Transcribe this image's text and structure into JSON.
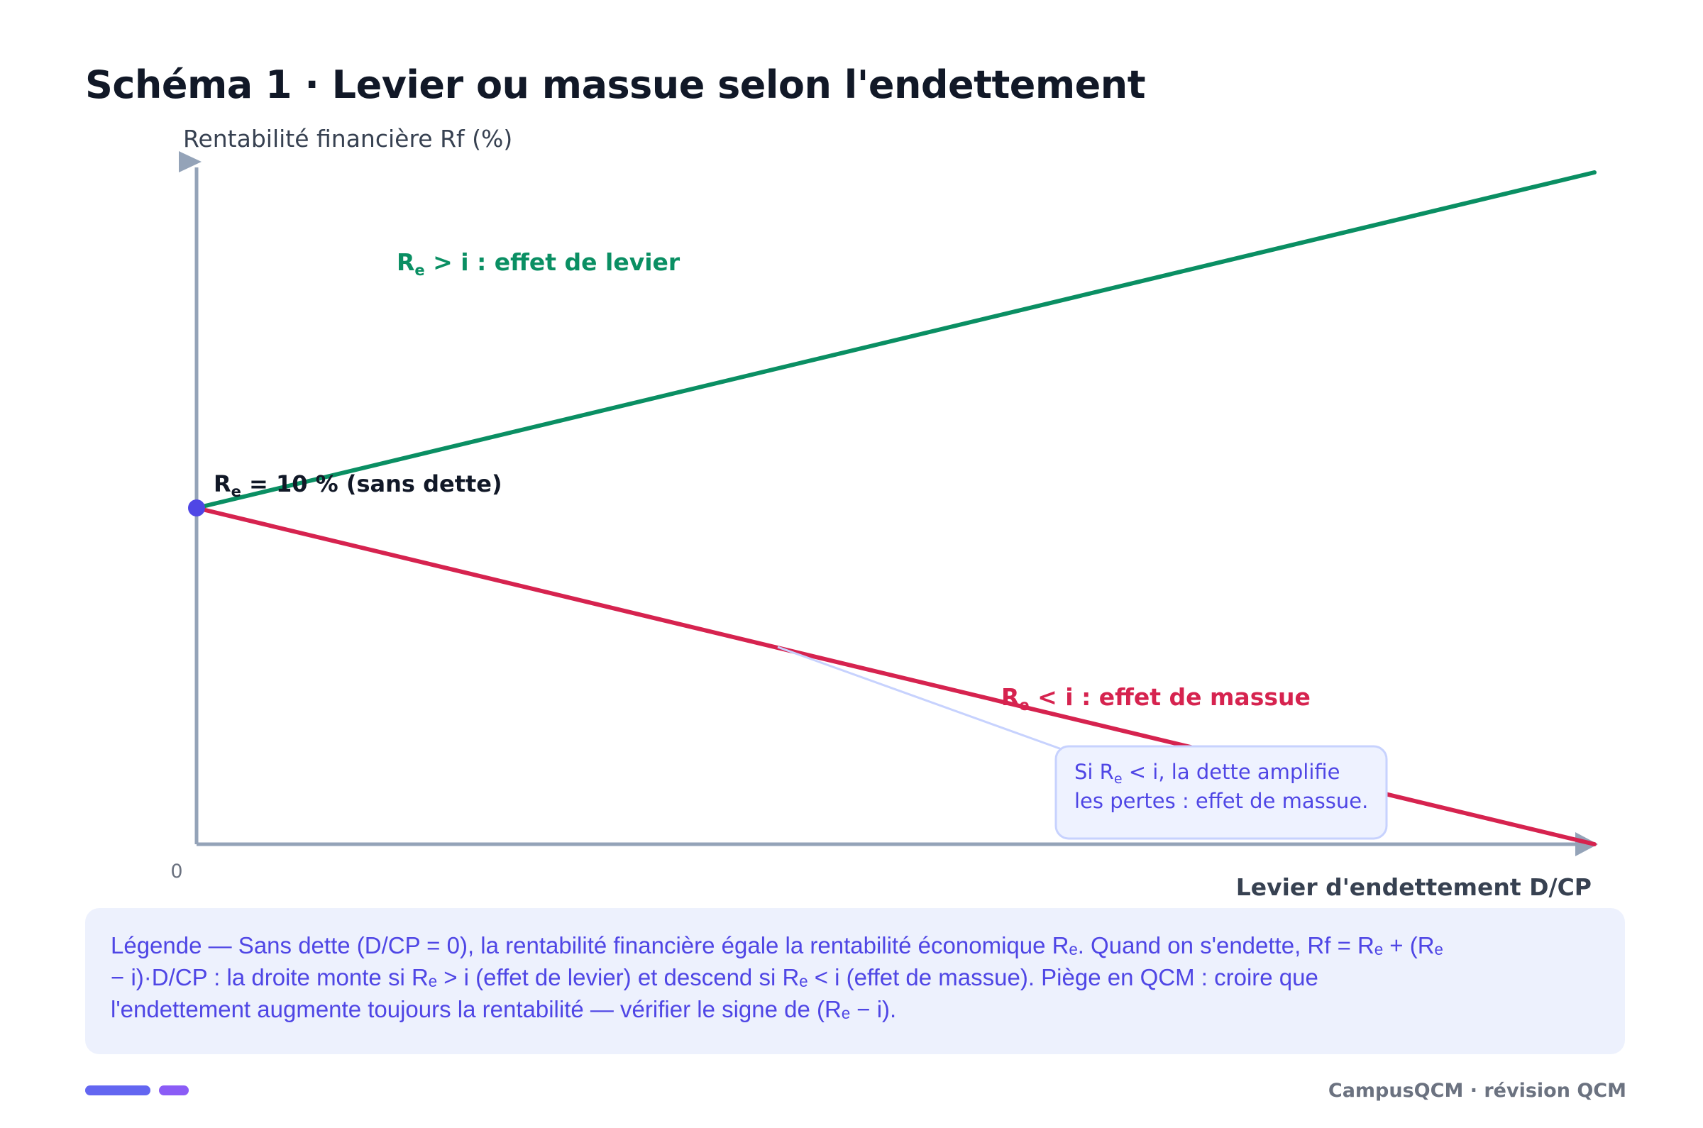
{
  "title": "Schéma 1 · Levier ou massue selon l'endettement",
  "axes": {
    "y_label": "Rentabilité financière Rf (%)",
    "x_label": "Levier d'endettement D/CP",
    "origin_label": "0"
  },
  "lines": {
    "leverage": {
      "label_main": "R",
      "label_sub": "e",
      "label_rest": " > i : effet de levier",
      "color": "#0a8f63"
    },
    "club": {
      "label_main": "R",
      "label_sub": "e",
      "label_rest": " < i : effet de massue",
      "color": "#d6234f"
    }
  },
  "start_point": {
    "label_main": "R",
    "label_sub": "e",
    "label_rest": " = 10 % (sans dette)",
    "color": "#4f46e5"
  },
  "callout": {
    "line1_pre": "Si R",
    "line1_sub": "e",
    "line1_post": " < i, la dette amplifie",
    "line2": "les pertes : effet de massue."
  },
  "legend": {
    "text": "Légende — Sans dette (D/CP = 0), la rentabilité financière égale la rentabilité économique Rₑ. Quand on s'endette, Rf = Rₑ + (Rₑ\n− i)·D/CP : la droite monte si Rₑ > i (effet de levier) et descend si Rₑ < i (effet de massue). Piège en QCM : croire que\nl'endettement augmente toujours la rentabilité — vérifier le signe de (Rₑ − i)."
  },
  "footer": {
    "brand": "CampusQCM · révision QCM"
  },
  "colors": {
    "axis": "#94a3b8",
    "title": "#111827",
    "callout_bg": "#eef2ff",
    "callout_border": "#c7d2fe",
    "callout_text": "#4f46e5",
    "bar_primary": "#6366f1",
    "bar_secondary": "#8b5cf6"
  }
}
